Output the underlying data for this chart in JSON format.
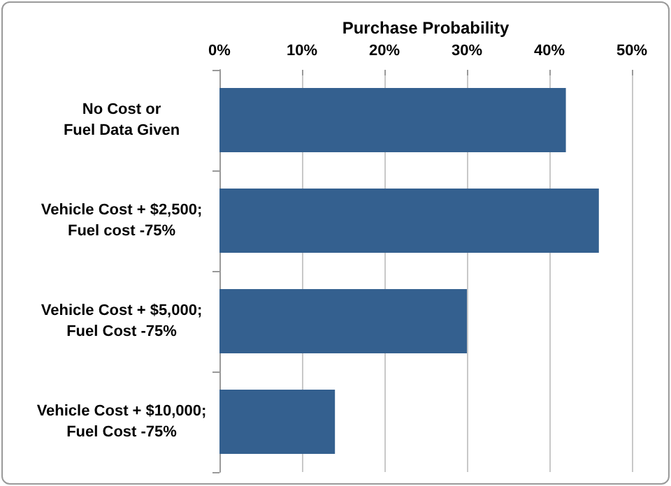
{
  "chart_data": {
    "type": "bar",
    "orientation": "horizontal",
    "xlabel": "Purchase Probability",
    "categories": [
      "No Cost or\nFuel Data Given",
      "Vehicle Cost + $2,500;\nFuel cost -75%",
      "Vehicle Cost + $5,000;\nFuel Cost -75%",
      "Vehicle Cost + $10,000;\nFuel Cost -75%"
    ],
    "values": [
      42,
      46,
      30,
      14
    ],
    "color": "#34608f",
    "xlim": [
      0,
      50
    ],
    "xticks": [
      {
        "value": 0,
        "label": "0%"
      },
      {
        "value": 10,
        "label": "10%"
      },
      {
        "value": 20,
        "label": "20%"
      },
      {
        "value": 30,
        "label": "30%"
      },
      {
        "value": 40,
        "label": "40%"
      },
      {
        "value": 50,
        "label": "50%"
      }
    ],
    "grid": "x"
  }
}
